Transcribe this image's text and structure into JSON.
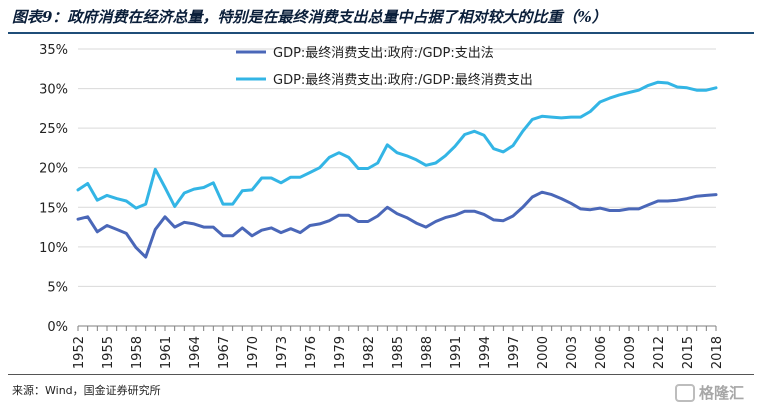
{
  "title": "图表9：政府消费在经济总量，特别是在最终消费支出总量中占据了相对较大的比重（%）",
  "source": "来源：Wind，国金证券研究所",
  "watermark": "格隆汇",
  "colors": {
    "series1": "#4a67b8",
    "series2": "#33b5e5",
    "rule": "#1f4e79"
  },
  "chart_data": {
    "type": "line",
    "title": "图表9：政府消费在经济总量，特别是在最终消费支出总量中占据了相对较大的比重（%）",
    "xlabel": "",
    "ylabel": "",
    "ylim": [
      0,
      35
    ],
    "y_ticks": [
      "0%",
      "5%",
      "10%",
      "15%",
      "20%",
      "25%",
      "30%",
      "35%"
    ],
    "y_tick_values": [
      0,
      5,
      10,
      15,
      20,
      25,
      30,
      35
    ],
    "x_ticks": [
      "1952",
      "1955",
      "1958",
      "1961",
      "1964",
      "1967",
      "1970",
      "1973",
      "1976",
      "1979",
      "1982",
      "1985",
      "1988",
      "1991",
      "1994",
      "1997",
      "2000",
      "2003",
      "2006",
      "2009",
      "2012",
      "2015",
      "2018"
    ],
    "grid": true,
    "legend": "top",
    "x": [
      1952,
      1953,
      1954,
      1955,
      1956,
      1957,
      1958,
      1959,
      1960,
      1961,
      1962,
      1963,
      1964,
      1965,
      1966,
      1967,
      1968,
      1969,
      1970,
      1971,
      1972,
      1973,
      1974,
      1975,
      1976,
      1977,
      1978,
      1979,
      1980,
      1981,
      1982,
      1983,
      1984,
      1985,
      1986,
      1987,
      1988,
      1989,
      1990,
      1991,
      1992,
      1993,
      1994,
      1995,
      1996,
      1997,
      1998,
      1999,
      2000,
      2001,
      2002,
      2003,
      2004,
      2005,
      2006,
      2007,
      2008,
      2009,
      2010,
      2011,
      2012,
      2013,
      2014,
      2015,
      2016,
      2017,
      2018
    ],
    "series": [
      {
        "name": "GDP:最终消费支出:政府:/GDP:支出法",
        "values": [
          13.5,
          13.8,
          11.9,
          12.7,
          12.2,
          11.7,
          9.9,
          8.7,
          12.2,
          13.8,
          12.5,
          13.1,
          12.9,
          12.5,
          12.5,
          11.4,
          11.4,
          12.4,
          11.4,
          12.1,
          12.4,
          11.8,
          12.3,
          11.8,
          12.7,
          12.9,
          13.3,
          14.0,
          14.0,
          13.2,
          13.2,
          13.9,
          15.0,
          14.2,
          13.7,
          13.0,
          12.5,
          13.2,
          13.7,
          14.0,
          14.5,
          14.5,
          14.1,
          13.4,
          13.3,
          13.9,
          15.0,
          16.3,
          16.9,
          16.6,
          16.1,
          15.5,
          14.8,
          14.7,
          14.9,
          14.6,
          14.6,
          14.8,
          14.8,
          15.3,
          15.8,
          15.8,
          15.9,
          16.1,
          16.4,
          16.5,
          16.6
        ]
      },
      {
        "name": "GDP:最终消费支出:政府:/GDP:最终消费支出",
        "values": [
          17.2,
          18.0,
          15.9,
          16.5,
          16.1,
          15.8,
          14.9,
          15.4,
          19.8,
          17.5,
          15.1,
          16.8,
          17.3,
          17.5,
          18.1,
          15.4,
          15.4,
          17.1,
          17.2,
          18.7,
          18.7,
          18.1,
          18.8,
          18.8,
          19.4,
          20.0,
          21.3,
          21.9,
          21.3,
          19.9,
          19.9,
          20.6,
          22.9,
          21.9,
          21.5,
          21.0,
          20.3,
          20.6,
          21.5,
          22.7,
          24.2,
          24.6,
          24.1,
          22.4,
          22.0,
          22.8,
          24.6,
          26.1,
          26.5,
          26.4,
          26.3,
          26.4,
          26.4,
          27.1,
          28.3,
          28.8,
          29.2,
          29.5,
          29.8,
          30.4,
          30.8,
          30.7,
          30.2,
          30.1,
          29.8,
          29.8,
          30.1
        ]
      }
    ]
  }
}
